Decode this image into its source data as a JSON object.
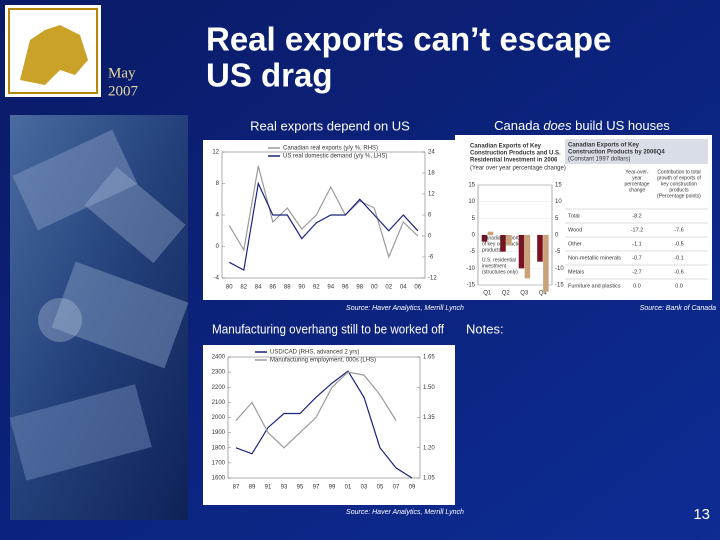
{
  "header": {
    "date": [
      "May",
      "2007"
    ],
    "title": [
      "Real exports can’t escape",
      "US drag"
    ]
  },
  "panel1": {
    "heading": "Real exports depend on US",
    "chart_data": {
      "type": "line",
      "categories": [
        "80",
        "82",
        "84",
        "86",
        "88",
        "90",
        "92",
        "94",
        "96",
        "98",
        "00",
        "02",
        "04",
        "06"
      ],
      "series": [
        {
          "name": "Canadian real exports (y/y %, RHS)",
          "color": "#9a9a9a",
          "axis": "y2",
          "values": [
            3,
            -4,
            20,
            4,
            8,
            2,
            6,
            14,
            6,
            10,
            8,
            -6,
            4,
            0
          ]
        },
        {
          "name": "US real domestic demand (y/y %, LHS)",
          "color": "#1a237e",
          "values": [
            -2,
            -3,
            8,
            4,
            4,
            1,
            3,
            4,
            4,
            6,
            4,
            2,
            4,
            2
          ]
        }
      ],
      "ylim": [
        -4,
        12
      ],
      "yticks": [
        12,
        8,
        4,
        0,
        -4
      ],
      "y2lim": [
        -12,
        24
      ],
      "y2ticks": [
        24,
        18,
        12,
        6,
        0,
        -6,
        -12
      ]
    },
    "source": "Source: Haver Analytics, Merrill Lynch"
  },
  "panel2": {
    "heading": [
      "Canada ",
      "does",
      " build US houses"
    ],
    "chart_data": {
      "type": "bar",
      "title": [
        "Canadian Exports of Key",
        "Construction Products and U.S.",
        "Residential Investment in 2006"
      ],
      "subtitle": "(Year over year percentage change)",
      "categories": [
        "Q1",
        "Q2",
        "Q3",
        "Q4"
      ],
      "series": [
        {
          "name": [
            "Canadian exports",
            "of key construction",
            "products"
          ],
          "color": "#7a1020",
          "values": [
            -2,
            -5,
            -10,
            -8
          ]
        },
        {
          "name": [
            "U.S. residential",
            "investment",
            "(structures only)"
          ],
          "color": "#c9a27a",
          "values": [
            1,
            -3,
            -13,
            -17
          ]
        }
      ],
      "ylim": [
        -15,
        15
      ],
      "yticks": [
        15,
        10,
        5,
        0,
        -5,
        -10,
        -15
      ]
    },
    "table": {
      "title": [
        "Canadian Exports of Key",
        "Construction Products by 2006Q4",
        "(Constant 1997 dollars)"
      ],
      "columns": [
        [
          "Year-over-",
          "year",
          "percentage",
          "change"
        ],
        [
          "Contribution to total",
          "growth of exports of",
          "key construction",
          "products",
          "(Percentage points)"
        ]
      ],
      "rows": [
        [
          "Total",
          "-8.2",
          ""
        ],
        [
          "Wood",
          "-17.2",
          "-7.6"
        ],
        [
          "Other",
          "-1.1",
          "-0.5"
        ],
        [
          "Non-metallic minerals",
          "-0.7",
          "-0.1"
        ],
        [
          "Metals",
          "-2.7",
          "-0.6"
        ],
        [
          "Furniture and plastics",
          "0.0",
          "0.0"
        ]
      ]
    },
    "source": "Source: Bank of Canada"
  },
  "panel3": {
    "heading": "Manufacturing overhang still to be worked off",
    "chart_data": {
      "type": "line",
      "categories": [
        "87",
        "89",
        "91",
        "93",
        "95",
        "97",
        "99",
        "01",
        "03",
        "05",
        "07",
        "09"
      ],
      "series": [
        {
          "name": "USD/CAD (RHS, advanced 2 yrs)",
          "color": "#1a237e",
          "axis": "y2",
          "values": [
            1.2,
            1.17,
            1.3,
            1.37,
            1.37,
            1.45,
            1.52,
            1.58,
            1.45,
            1.2,
            1.1,
            1.05
          ]
        },
        {
          "name": "Manufacturing employment, 000s (LHS)",
          "color": "#9a9a9a",
          "values": [
            1980,
            2100,
            1900,
            1800,
            1900,
            2000,
            2200,
            2300,
            2280,
            2150,
            1980,
            null
          ]
        }
      ],
      "ylim": [
        1600,
        2400
      ],
      "yticks": [
        2400,
        2300,
        2200,
        2100,
        2000,
        1900,
        1800,
        1700,
        1600
      ],
      "y2lim": [
        1.05,
        1.65
      ],
      "y2ticks": [
        1.65,
        {
          "value": 1.5,
          "label": "1.50"
        },
        1.35,
        {
          "value": 1.2,
          "label": "1.20"
        },
        1.05
      ]
    },
    "source": "Source: Haver Analytics, Merrill Lynch"
  },
  "notes": "Notes:",
  "page_number": "13"
}
